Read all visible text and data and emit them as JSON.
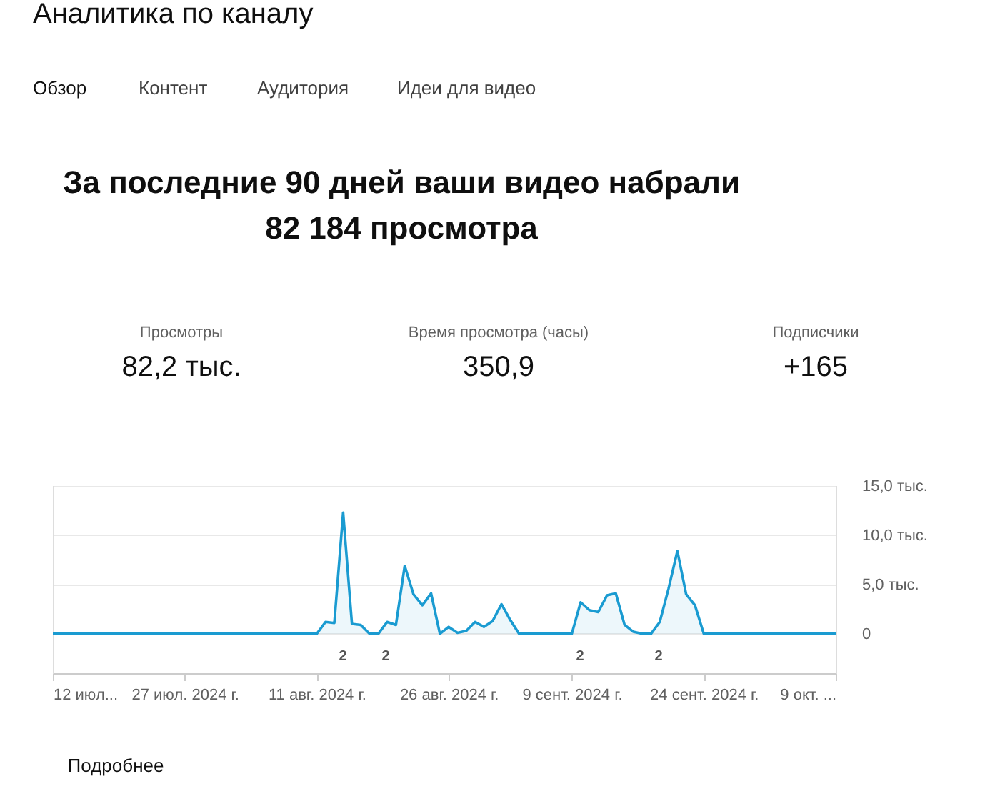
{
  "chart_data": {
    "type": "area",
    "title": "За последние 90 дней ваши видео набрали 82 184 просмотра",
    "x": [
      "2024-07-12",
      "2024-08-11",
      "2024-08-12",
      "2024-08-13",
      "2024-08-14",
      "2024-08-15",
      "2024-08-16",
      "2024-08-17",
      "2024-08-18",
      "2024-08-19",
      "2024-08-20",
      "2024-08-21",
      "2024-08-22",
      "2024-08-23",
      "2024-08-24",
      "2024-08-25",
      "2024-08-26",
      "2024-08-27",
      "2024-08-28",
      "2024-08-29",
      "2024-08-30",
      "2024-08-31",
      "2024-09-01",
      "2024-09-02",
      "2024-09-03",
      "2024-09-09",
      "2024-09-10",
      "2024-09-11",
      "2024-09-12",
      "2024-09-13",
      "2024-09-14",
      "2024-09-15",
      "2024-09-16",
      "2024-09-17",
      "2024-09-18",
      "2024-09-19",
      "2024-09-20",
      "2024-09-21",
      "2024-09-22",
      "2024-09-23",
      "2024-09-24",
      "2024-10-09"
    ],
    "series": [
      {
        "color": "#1a9bd1",
        "values": [
          0,
          0,
          1.2,
          1.1,
          12.3,
          1.0,
          0.9,
          0,
          0,
          1.2,
          0.9,
          6.9,
          4.0,
          2.9,
          4.1,
          0,
          0.7,
          0.1,
          0.3,
          1.2,
          0.7,
          1.3,
          3.0,
          1.4,
          0,
          0,
          3.2,
          2.4,
          2.2,
          3.9,
          4.1,
          0.9,
          0.2,
          0,
          0,
          1.2,
          4.6,
          8.4,
          4.0,
          2.9,
          0,
          0
        ]
      }
    ],
    "xlim": [
      "2024-07-12",
      "2024-10-09"
    ],
    "xticks": [
      {
        "value": "2024-07-12",
        "label": "12 июл..."
      },
      {
        "value": "2024-07-27",
        "label": "27 июл. 2024 г."
      },
      {
        "value": "2024-08-11",
        "label": "11 авг. 2024 г."
      },
      {
        "value": "2024-08-26",
        "label": "26 авг. 2024 г."
      },
      {
        "value": "2024-09-09",
        "label": "9 сент. 2024 г."
      },
      {
        "value": "2024-09-24",
        "label": "24 сент. 2024 г."
      },
      {
        "value": "2024-10-09",
        "label": "9 окт. ..."
      }
    ],
    "ylim": [
      -4,
      15
    ],
    "yticks": [
      0,
      {
        "value": 5,
        "label": "5,0 тыс."
      },
      {
        "value": 10,
        "label": "10,0 тыс."
      },
      {
        "value": 15,
        "label": "15,0 тыс."
      }
    ],
    "grid": "y",
    "annotations": [
      "Аналитика по каналу",
      "Обзор",
      "Контент",
      "Аудитория",
      "Идеи для видео",
      "Просмотры",
      "82,2 тыс.",
      "Время просмотра (часы)",
      "350,9",
      "Подписчики",
      "+165",
      "Подробнее",
      "2",
      "2",
      "2",
      "2"
    ]
  }
}
